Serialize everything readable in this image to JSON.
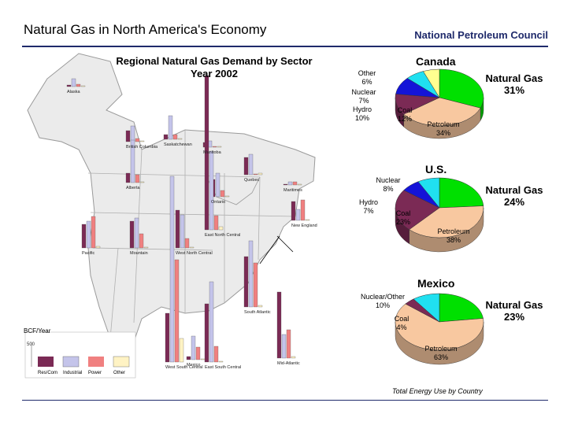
{
  "header": {
    "title": "Natural Gas in North America's Economy",
    "organization": "National Petroleum Council"
  },
  "map_chart": {
    "title_line1": "Regional Natural Gas Demand by Sector",
    "title_line2": "Year 2002",
    "unit_label": "BCF/Year",
    "scale_tick": "500",
    "legend": [
      "Res/Com",
      "Industrial",
      "Power",
      "Other"
    ],
    "regions": [
      "Alaska",
      "British Columbia",
      "Saskatchewan",
      "Manitoba",
      "Alberta",
      "Quebec",
      "Maritimes",
      "Ontario",
      "New England",
      "Pacific",
      "Mountain",
      "West North Central",
      "East North Central",
      "Mid-Atlantic",
      "East South Central",
      "South Atlantic",
      "West South Central",
      "Mexico"
    ]
  },
  "colors": {
    "res_com": "#7b2a55",
    "industrial": "#c4c4ea",
    "power": "#f08080",
    "other": "#fff3c4",
    "natural_gas": "#00e000",
    "petroleum": "#f8c8a0",
    "coal": "#7b2a55",
    "hydro": "#1414d8",
    "nuclear": "#20e0f0",
    "other_slice": "#ffff90"
  },
  "pies_caption": "Total Energy Use by Country",
  "chart_data": [
    {
      "type": "pie",
      "title": "Canada",
      "slices": [
        {
          "label": "Natural Gas",
          "value": 31,
          "display": "31%"
        },
        {
          "label": "Petroleum",
          "value": 34,
          "display": "34%"
        },
        {
          "label": "Coal",
          "value": 12,
          "display": "12%"
        },
        {
          "label": "Hydro",
          "value": 10,
          "display": "10%"
        },
        {
          "label": "Nuclear",
          "value": 7,
          "display": "7%"
        },
        {
          "label": "Other",
          "value": 6,
          "display": "6%"
        }
      ]
    },
    {
      "type": "pie",
      "title": "U.S.",
      "slices": [
        {
          "label": "Natural Gas",
          "value": 24,
          "display": "24%"
        },
        {
          "label": "Petroleum",
          "value": 38,
          "display": "38%"
        },
        {
          "label": "Coal",
          "value": 23,
          "display": "23%"
        },
        {
          "label": "Hydro",
          "value": 7,
          "display": "7%"
        },
        {
          "label": "Nuclear",
          "value": 8,
          "display": "8%"
        }
      ]
    },
    {
      "type": "pie",
      "title": "Mexico",
      "slices": [
        {
          "label": "Natural Gas",
          "value": 23,
          "display": "23%"
        },
        {
          "label": "Petroleum",
          "value": 63,
          "display": "63%"
        },
        {
          "label": "Coal",
          "value": 4,
          "display": "4%"
        },
        {
          "label": "Nuclear/Other",
          "value": 10,
          "display": "10%"
        }
      ]
    }
  ]
}
